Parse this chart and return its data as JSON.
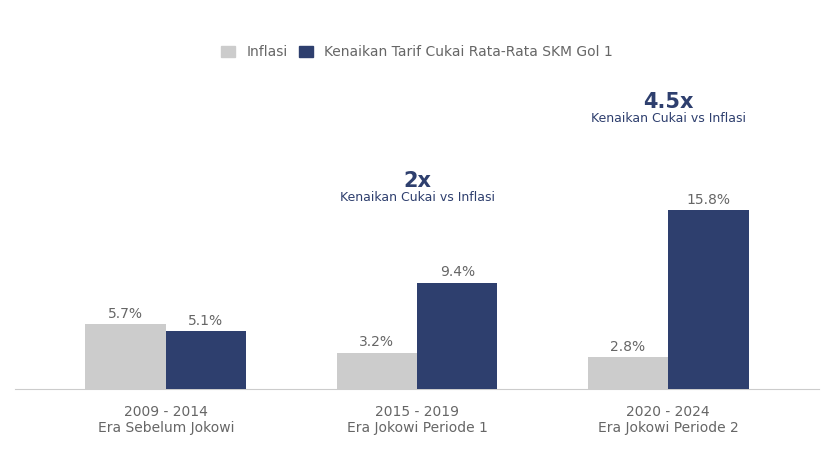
{
  "groups": [
    "2009 - 2014\nEra Sebelum Jokowi",
    "2015 - 2019\nEra Jokowi Periode 1",
    "2020 - 2024\nEra Jokowi Periode 2"
  ],
  "inflasi": [
    5.7,
    3.2,
    2.8
  ],
  "cukai": [
    5.1,
    9.4,
    15.8
  ],
  "color_inflasi": "#cccccc",
  "color_cukai": "#2e3f6e",
  "annotation_color": "#2e3f6e",
  "legend_label_inflasi": "Inflasi",
  "legend_label_cukai": "Kenaikan Tarif Cukai Rata-Rata SKM Gol 1",
  "bar_width": 0.32,
  "ylim": [
    0,
    28
  ],
  "figsize": [
    8.34,
    4.5
  ],
  "dpi": 100,
  "background_color": "#ffffff",
  "label_color": "#666666",
  "value_fontsize": 10,
  "annot_main_fontsize": 15,
  "annot_sub_fontsize": 9,
  "legend_fontsize": 10
}
